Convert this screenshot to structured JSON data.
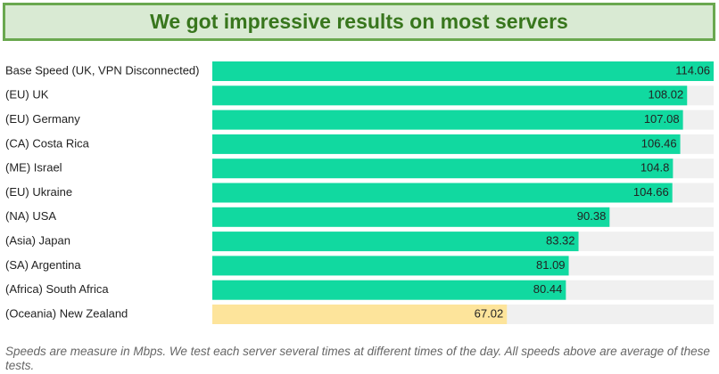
{
  "chart_data": {
    "type": "bar",
    "title": "We got impressive results on most servers",
    "categories": [
      "Base Speed (UK, VPN Disconnected)",
      "(EU) UK",
      "(EU) Germany",
      "(CA) Costa Rica",
      "(ME) Israel",
      "(EU) Ukraine",
      "(NA) USA",
      "(Asia) Japan",
      "(SA) Argentina",
      "(Africa) South Africa",
      "(Oceania) New Zealand"
    ],
    "values": [
      114.06,
      108.02,
      107.08,
      106.46,
      104.8,
      104.66,
      90.38,
      83.32,
      81.09,
      80.44,
      67.02
    ],
    "colors": [
      "#11d9a0",
      "#11d9a0",
      "#11d9a0",
      "#11d9a0",
      "#11d9a0",
      "#11d9a0",
      "#11d9a0",
      "#11d9a0",
      "#11d9a0",
      "#11d9a0",
      "#fde49b"
    ],
    "note": "Speeds are measure in Mbps. We test each server several times at different times of the day. All speeds above are average of these tests."
  }
}
